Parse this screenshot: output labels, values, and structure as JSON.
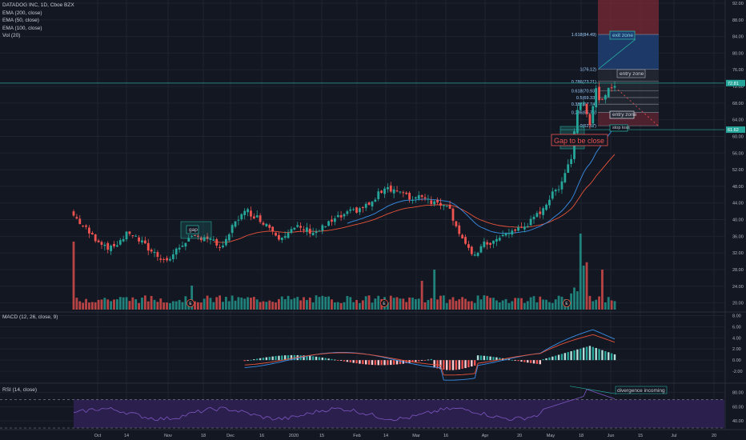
{
  "legend": {
    "symbol": "DATADOG INC, 1D, Cboe BZX",
    "ema200": "EMA (200, close)",
    "ema50": "EMA (50, close)",
    "ema100": "EMA (100, close)",
    "vol": "Vol (20)"
  },
  "macd_title": "MACD (12, 26, close, 9)",
  "rsi_title": "RSI (14, close)",
  "colors": {
    "background": "#131722",
    "grid": "#1e2330",
    "up": "#26a69a",
    "down": "#ef5350",
    "ema_red": "#e8533a",
    "ema_blue": "#3a8ee6",
    "text": "#b2b5be",
    "rsi_band": "#2b1f4d",
    "rsi_line": "#7e57c2",
    "fib_red": "#7a2a36",
    "fib_blue": "#1f3f73",
    "price_tag": "#26a69a"
  },
  "chart_data": [
    {
      "type": "candlestick",
      "title": "DATADOG INC, 1D, Cboe BZX",
      "y_ticks": [
        "92.00",
        "88.00",
        "84.00",
        "80.00",
        "76.00",
        "72.00",
        "68.00",
        "64.00",
        "60.00",
        "56.00",
        "52.00",
        "48.00",
        "44.00",
        "40.00",
        "36.00",
        "32.00",
        "28.00",
        "24.00",
        "20.00"
      ],
      "ylim": [
        18,
        92
      ],
      "x_ticks": [
        "Oct",
        "14",
        "Nov",
        "18",
        "Dec",
        "16",
        "2020",
        "15",
        "Feb",
        "14",
        "Mar",
        "16",
        "Apr",
        "20",
        "May",
        "18",
        "Jun",
        "15",
        "Jul",
        "20"
      ],
      "last_price_tag": "72.81",
      "stop_tag": "61.62",
      "annotations": [
        "gap",
        "Gap to be close",
        "exit zone",
        "entry zone",
        "entry zone",
        "stop loss"
      ],
      "fib_levels": [
        {
          "label": "1.618(84.49)",
          "value": 84.49
        },
        {
          "label": "1(76.12)",
          "value": 76.12
        },
        {
          "label": "0.786(73.21)",
          "value": 73.21
        },
        {
          "label": "0.618(70.93)",
          "value": 70.93
        },
        {
          "label": "0.5(69.33)",
          "value": 69.33
        },
        {
          "label": "0.382(67.74)",
          "value": 67.74
        },
        {
          "label": "0.236(65.76)",
          "value": 65.76
        },
        {
          "label": "0(62.57)",
          "value": 62.57
        }
      ],
      "series": [
        {
          "name": "EMA (200, close)",
          "color": "#e8533a"
        },
        {
          "name": "EMA (50, close)",
          "color": "#3a8ee6"
        },
        {
          "name": "Vol (20)"
        }
      ]
    },
    {
      "type": "line",
      "title": "MACD (12, 26, close, 9)",
      "y_ticks": [
        "8.00",
        "6.00",
        "4.00",
        "2.00",
        "0.00",
        "-2.00"
      ],
      "ylim": [
        -4,
        8.5
      ]
    },
    {
      "type": "line",
      "title": "RSI (14, close)",
      "y_ticks": [
        "80.00",
        "60.00",
        "40.00"
      ],
      "ylim": [
        30,
        92
      ],
      "bands": [
        70,
        30
      ],
      "annotation": "divergence incoming"
    }
  ]
}
